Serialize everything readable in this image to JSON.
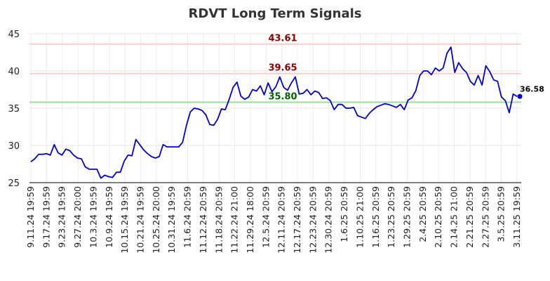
{
  "chart_data": {
    "type": "line",
    "title": "RDVT Long Term Signals",
    "xlabel": "",
    "ylabel": "",
    "ylim": [
      25,
      45
    ],
    "yticks": [
      25,
      30,
      35,
      40,
      45
    ],
    "grid": true,
    "x_tick_labels": [
      "9.11.24 19:59",
      "9.17.24 19:59",
      "9.23.24 19:59",
      "9.27.24 20:00",
      "10.3.24 19:59",
      "10.9.24 19:59",
      "10.15.24 19:59",
      "10.21.24 19:59",
      "10.25.24 20:00",
      "10.31.24 19:59",
      "11.6.24 20:59",
      "11.12.24 20:59",
      "11.18.24 20:59",
      "11.22.24 21:00",
      "11.29.24 18:00",
      "12.5.24 20:59",
      "12.11.24 20:59",
      "12.17.24 20:59",
      "12.23.24 20:59",
      "12.30.24 20:59",
      "1.6.25 20:59",
      "1.10.25 21:00",
      "1.16.25 20:59",
      "1.23.25 20:59",
      "1.29.25 20:59",
      "2.4.25 20:59",
      "2.10.25 20:59",
      "2.14.25 21:00",
      "2.21.25 20:59",
      "2.27.25 20:59",
      "3.5.25 20:59",
      "3.11.25 19:59"
    ],
    "series": [
      {
        "color": "#0000cc",
        "values": [
          27.8,
          28.2,
          28.8,
          28.8,
          28.9,
          28.7,
          30.1,
          29.0,
          28.7,
          29.5,
          29.3,
          28.7,
          28.3,
          28.2,
          27.1,
          26.8,
          26.8,
          26.8,
          25.6,
          26.0,
          25.8,
          25.7,
          26.4,
          26.4,
          27.9,
          28.7,
          28.6,
          30.8,
          30.1,
          29.4,
          28.9,
          28.5,
          28.3,
          28.5,
          30.1,
          29.8,
          29.8,
          29.8,
          29.8,
          30.4,
          32.7,
          34.5,
          35.0,
          34.9,
          34.7,
          34.1,
          32.8,
          32.7,
          33.5,
          34.9,
          34.8,
          36.2,
          37.8,
          38.5,
          36.6,
          36.2,
          36.5,
          37.5,
          37.3,
          38.0,
          36.8,
          38.4,
          37.2,
          37.9,
          39.2,
          37.8,
          37.4,
          38.4,
          39.2,
          36.9,
          37.0,
          37.5,
          36.8,
          37.3,
          37.1,
          36.3,
          36.4,
          36.0,
          34.8,
          35.5,
          35.5,
          35.0,
          35.0,
          35.1,
          34.0,
          33.8,
          33.6,
          34.3,
          34.8,
          35.2,
          35.4,
          35.6,
          35.5,
          35.3,
          35.1,
          35.5,
          34.8,
          36.1,
          36.4,
          37.4,
          39.4,
          40.0,
          40.0,
          39.5,
          40.4,
          40.0,
          40.4,
          42.4,
          43.2,
          39.8,
          41.1,
          40.3,
          39.8,
          38.6,
          38.1,
          39.4,
          38.1,
          40.7,
          39.9,
          38.8,
          38.6,
          36.5,
          36.0,
          34.4,
          36.9,
          36.58
        ]
      }
    ],
    "levels": [
      {
        "value": 43.61,
        "label": "43.61",
        "line_color": "#ffcccc",
        "text_color": "#8b0000"
      },
      {
        "value": 39.65,
        "label": "39.65",
        "line_color": "#ffcccc",
        "text_color": "#8b0000"
      },
      {
        "value": 35.8,
        "label": "35.80",
        "line_color": "#99dd99",
        "text_color": "#006400"
      }
    ],
    "last_value_label": "36.58",
    "legend": "none"
  }
}
